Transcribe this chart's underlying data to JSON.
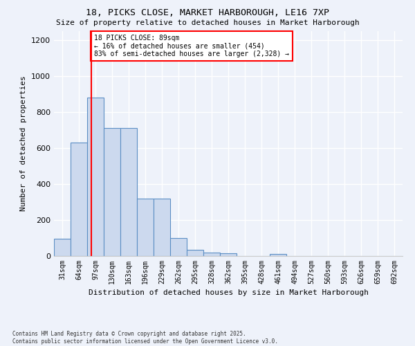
{
  "title_line1": "18, PICKS CLOSE, MARKET HARBOROUGH, LE16 7XP",
  "title_line2": "Size of property relative to detached houses in Market Harborough",
  "xlabel": "Distribution of detached houses by size in Market Harborough",
  "ylabel": "Number of detached properties",
  "footnote": "Contains HM Land Registry data © Crown copyright and database right 2025.\nContains public sector information licensed under the Open Government Licence v3.0.",
  "bin_labels": [
    "31sqm",
    "64sqm",
    "97sqm",
    "130sqm",
    "163sqm",
    "196sqm",
    "229sqm",
    "262sqm",
    "295sqm",
    "328sqm",
    "362sqm",
    "395sqm",
    "428sqm",
    "461sqm",
    "494sqm",
    "527sqm",
    "560sqm",
    "593sqm",
    "626sqm",
    "659sqm",
    "692sqm"
  ],
  "bar_values": [
    95,
    630,
    880,
    710,
    710,
    320,
    320,
    100,
    35,
    20,
    15,
    0,
    0,
    10,
    0,
    0,
    0,
    0,
    0,
    0,
    0
  ],
  "bar_color": "#ccd9ee",
  "bar_edge_color": "#5b8ec4",
  "vline_x": 2,
  "vline_color": "red",
  "annotation_text": "18 PICKS CLOSE: 89sqm\n← 16% of detached houses are smaller (454)\n83% of semi-detached houses are larger (2,328) →",
  "annotation_box_color": "white",
  "annotation_edge_color": "red",
  "ylim": [
    0,
    1250
  ],
  "yticks": [
    0,
    200,
    400,
    600,
    800,
    1000,
    1200
  ],
  "background_color": "#eef2fa",
  "plot_bg_color": "#eef2fa",
  "grid_color": "#ffffff"
}
